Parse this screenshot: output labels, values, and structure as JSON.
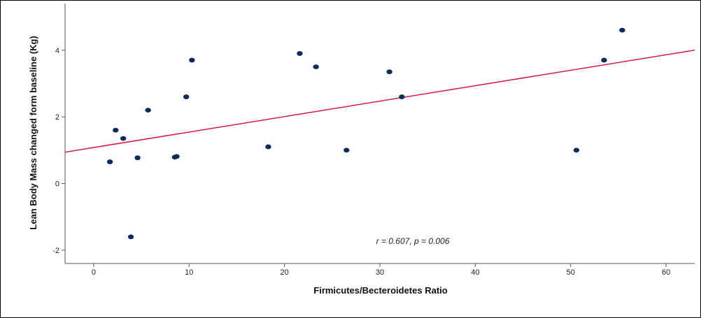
{
  "chart_data": {
    "type": "scatter",
    "xlabel": "Firmicutes/Becteroidetes Ratio",
    "ylabel": "Lean Body Mass changed form baseline (Kg)",
    "xlim": [
      -3,
      63
    ],
    "ylim": [
      -2.4,
      5.4
    ],
    "x_ticks": [
      0,
      10,
      20,
      30,
      40,
      50,
      60
    ],
    "y_ticks": [
      -2,
      0,
      2,
      4
    ],
    "annotation": "r = 0.607, p = 0.006",
    "fit_line": {
      "type": "linear",
      "x": [
        -3,
        63
      ],
      "y": [
        0.94,
        4.0
      ]
    },
    "colors": {
      "points": "#0b2a5e",
      "fit_line": "#d8194a"
    },
    "points": [
      {
        "x": 1.7,
        "y": 0.65
      },
      {
        "x": 2.3,
        "y": 1.6
      },
      {
        "x": 3.1,
        "y": 1.35
      },
      {
        "x": 3.9,
        "y": -1.6
      },
      {
        "x": 4.6,
        "y": 0.77
      },
      {
        "x": 5.7,
        "y": 2.2
      },
      {
        "x": 8.5,
        "y": 0.79
      },
      {
        "x": 8.7,
        "y": 0.81
      },
      {
        "x": 9.7,
        "y": 2.6
      },
      {
        "x": 10.3,
        "y": 3.7
      },
      {
        "x": 18.3,
        "y": 1.1
      },
      {
        "x": 21.6,
        "y": 3.9
      },
      {
        "x": 23.3,
        "y": 3.5
      },
      {
        "x": 26.5,
        "y": 1.0
      },
      {
        "x": 31.0,
        "y": 3.35
      },
      {
        "x": 32.3,
        "y": 2.6
      },
      {
        "x": 50.6,
        "y": 1.0
      },
      {
        "x": 53.5,
        "y": 3.7
      },
      {
        "x": 55.4,
        "y": 4.6
      }
    ]
  }
}
